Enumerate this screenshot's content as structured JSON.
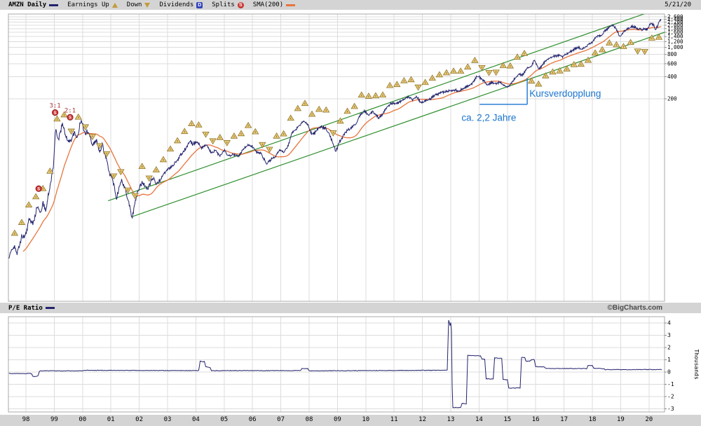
{
  "header": {
    "symbol_label": "AMZN Daily",
    "legend": {
      "earnings_up": "Earnings Up",
      "down": "Down",
      "dividends": "Dividends",
      "dividend_badge": "D",
      "splits": "Splits",
      "split_badge": "S",
      "sma": "SMA(200)"
    },
    "date": "5/21/20"
  },
  "pe_header": {
    "label": "P/E Ratio",
    "credit": "©BigCharts.com"
  },
  "colors": {
    "price": "#23236e",
    "sma": "#e8743c",
    "grid": "#dcdcdc",
    "border": "#aaaaaa",
    "channel": "#2f8f2f",
    "marker_fill": "#e9cb7c",
    "marker_stroke": "#8f7427",
    "split_fill": "#cc3333",
    "split_label": "#aa3333",
    "annotation": "#1a75d2",
    "axis_text": "#000000"
  },
  "chart_data": [
    {
      "type": "line",
      "title": "AMZN Daily",
      "yscale": "log",
      "x_domain": [
        1997.4,
        2020.55
      ],
      "x_ticks": {
        "start_year": 1998,
        "labels": [
          "98",
          "99",
          "00",
          "01",
          "02",
          "03",
          "04",
          "05",
          "06",
          "07",
          "08",
          "09",
          "10",
          "11",
          "12",
          "13",
          "14",
          "15",
          "16",
          "17",
          "18",
          "19",
          "20"
        ]
      },
      "y_gridlines": [
        200,
        400,
        600,
        800,
        1000,
        1200,
        1400,
        1600,
        1800,
        2000,
        2200,
        2400,
        2600
      ],
      "y_tick_labels": [
        {
          "value": 2600,
          "label": "2,600"
        },
        {
          "value": 2400,
          "label": "2,400"
        },
        {
          "value": 2200,
          "label": "2,200"
        },
        {
          "value": 2000,
          "label": "2,000"
        },
        {
          "value": 1800,
          "label": "1,800"
        },
        {
          "value": 1600,
          "label": "1,600"
        },
        {
          "value": 1400,
          "label": "1,400"
        },
        {
          "value": 1200,
          "label": "1,200"
        },
        {
          "value": 1000,
          "label": "1,000"
        },
        {
          "value": 800,
          "label": "800"
        },
        {
          "value": 600,
          "label": "600"
        },
        {
          "value": 400,
          "label": "400"
        },
        {
          "value": 200,
          "label": "200"
        }
      ],
      "sma_window_years": 0.8,
      "price_keypoints": [
        [
          1997.4,
          1.35
        ],
        [
          1997.55,
          2.0
        ],
        [
          1997.7,
          1.6
        ],
        [
          1997.85,
          2.6
        ],
        [
          1998.0,
          2.9
        ],
        [
          1998.1,
          4.5
        ],
        [
          1998.25,
          4.0
        ],
        [
          1998.4,
          7.0
        ],
        [
          1998.5,
          5.5
        ],
        [
          1998.6,
          7.5
        ],
        [
          1998.7,
          6.3
        ],
        [
          1998.82,
          11
        ],
        [
          1998.9,
          17
        ],
        [
          1998.97,
          24
        ],
        [
          1999.05,
          80
        ],
        [
          1999.15,
          55
        ],
        [
          1999.3,
          95
        ],
        [
          1999.4,
          60
        ],
        [
          1999.55,
          52
        ],
        [
          1999.7,
          68
        ],
        [
          1999.8,
          58
        ],
        [
          1999.95,
          103
        ],
        [
          2000.1,
          65
        ],
        [
          2000.2,
          75
        ],
        [
          2000.35,
          48
        ],
        [
          2000.5,
          55
        ],
        [
          2000.6,
          36
        ],
        [
          2000.7,
          48
        ],
        [
          2000.85,
          28
        ],
        [
          2000.95,
          20
        ],
        [
          2001.1,
          14
        ],
        [
          2001.2,
          9
        ],
        [
          2001.35,
          16
        ],
        [
          2001.5,
          12
        ],
        [
          2001.6,
          9
        ],
        [
          2001.75,
          4.8
        ],
        [
          2001.9,
          9.5
        ],
        [
          2002.0,
          12
        ],
        [
          2002.1,
          15
        ],
        [
          2002.3,
          12
        ],
        [
          2002.5,
          17
        ],
        [
          2002.6,
          13.5
        ],
        [
          2002.75,
          16
        ],
        [
          2002.9,
          20
        ],
        [
          2003.1,
          23
        ],
        [
          2003.3,
          28
        ],
        [
          2003.5,
          36
        ],
        [
          2003.65,
          42
        ],
        [
          2003.8,
          54
        ],
        [
          2003.9,
          48
        ],
        [
          2004.05,
          52
        ],
        [
          2004.2,
          43
        ],
        [
          2004.4,
          47
        ],
        [
          2004.55,
          36
        ],
        [
          2004.7,
          40
        ],
        [
          2004.85,
          33
        ],
        [
          2005.0,
          40
        ],
        [
          2005.15,
          33
        ],
        [
          2005.3,
          35
        ],
        [
          2005.5,
          33
        ],
        [
          2005.7,
          42
        ],
        [
          2005.85,
          48
        ],
        [
          2006.0,
          45
        ],
        [
          2006.15,
          37
        ],
        [
          2006.3,
          36
        ],
        [
          2006.5,
          26
        ],
        [
          2006.65,
          30
        ],
        [
          2006.8,
          32
        ],
        [
          2006.95,
          40
        ],
        [
          2007.1,
          37
        ],
        [
          2007.25,
          45
        ],
        [
          2007.4,
          70
        ],
        [
          2007.55,
          78
        ],
        [
          2007.7,
          90
        ],
        [
          2007.8,
          99
        ],
        [
          2007.95,
          90
        ],
        [
          2008.05,
          72
        ],
        [
          2008.15,
          65
        ],
        [
          2008.3,
          78
        ],
        [
          2008.45,
          83
        ],
        [
          2008.6,
          78
        ],
        [
          2008.75,
          62
        ],
        [
          2008.9,
          42
        ],
        [
          2008.95,
          38
        ],
        [
          2009.05,
          52
        ],
        [
          2009.2,
          62
        ],
        [
          2009.35,
          75
        ],
        [
          2009.5,
          82
        ],
        [
          2009.65,
          90
        ],
        [
          2009.8,
          120
        ],
        [
          2009.95,
          135
        ],
        [
          2010.1,
          120
        ],
        [
          2010.25,
          135
        ],
        [
          2010.45,
          110
        ],
        [
          2010.6,
          125
        ],
        [
          2010.75,
          155
        ],
        [
          2010.9,
          175
        ],
        [
          2011.05,
          170
        ],
        [
          2011.2,
          180
        ],
        [
          2011.35,
          195
        ],
        [
          2011.5,
          215
        ],
        [
          2011.65,
          195
        ],
        [
          2011.8,
          215
        ],
        [
          2011.95,
          175
        ],
        [
          2012.1,
          185
        ],
        [
          2012.25,
          195
        ],
        [
          2012.4,
          220
        ],
        [
          2012.55,
          230
        ],
        [
          2012.7,
          245
        ],
        [
          2012.85,
          250
        ],
        [
          2013.0,
          260
        ],
        [
          2013.15,
          265
        ],
        [
          2013.3,
          255
        ],
        [
          2013.45,
          280
        ],
        [
          2013.6,
          300
        ],
        [
          2013.75,
          320
        ],
        [
          2013.9,
          395
        ],
        [
          2014.0,
          400
        ],
        [
          2014.15,
          355
        ],
        [
          2014.3,
          310
        ],
        [
          2014.45,
          330
        ],
        [
          2014.6,
          320
        ],
        [
          2014.75,
          340
        ],
        [
          2014.9,
          300
        ],
        [
          2015.0,
          290
        ],
        [
          2015.1,
          310
        ],
        [
          2015.25,
          375
        ],
        [
          2015.4,
          425
        ],
        [
          2015.55,
          430
        ],
        [
          2015.7,
          520
        ],
        [
          2015.85,
          560
        ],
        [
          2015.95,
          670
        ],
        [
          2016.1,
          510
        ],
        [
          2016.2,
          550
        ],
        [
          2016.35,
          660
        ],
        [
          2016.5,
          715
        ],
        [
          2016.65,
          760
        ],
        [
          2016.8,
          780
        ],
        [
          2016.95,
          750
        ],
        [
          2017.1,
          820
        ],
        [
          2017.25,
          890
        ],
        [
          2017.4,
          960
        ],
        [
          2017.5,
          1000
        ],
        [
          2017.6,
          950
        ],
        [
          2017.75,
          990
        ],
        [
          2017.9,
          1120
        ],
        [
          2018.0,
          1190
        ],
        [
          2018.1,
          1350
        ],
        [
          2018.2,
          1450
        ],
        [
          2018.3,
          1400
        ],
        [
          2018.45,
          1700
        ],
        [
          2018.6,
          1850
        ],
        [
          2018.7,
          2020
        ],
        [
          2018.8,
          1900
        ],
        [
          2018.9,
          1600
        ],
        [
          2018.98,
          1370
        ],
        [
          2019.1,
          1650
        ],
        [
          2019.25,
          1780
        ],
        [
          2019.4,
          1920
        ],
        [
          2019.5,
          1900
        ],
        [
          2019.6,
          1800
        ],
        [
          2019.75,
          1750
        ],
        [
          2019.85,
          1780
        ],
        [
          2019.95,
          1790
        ],
        [
          2020.1,
          2150
        ],
        [
          2020.17,
          2000
        ],
        [
          2020.23,
          1680
        ],
        [
          2020.3,
          1950
        ],
        [
          2020.38,
          2380
        ],
        [
          2020.42,
          2446
        ]
      ],
      "trend_channel": {
        "lower": [
          [
            2001.75,
            5.0
          ],
          [
            2020.55,
            1600
          ]
        ],
        "upper": [
          [
            2000.9,
            8.2
          ],
          [
            2019.75,
            2780
          ]
        ]
      },
      "earnings": {
        "quarter_start": 1997.6,
        "quarter_count": 92,
        "step": 0.25,
        "down_quarters": [
          1999.6,
          2000.1,
          2000.35,
          2000.6,
          2000.85,
          2001.1,
          2001.35,
          2001.6,
          2001.85,
          2002.35,
          2004.35,
          2004.6,
          2005.1,
          2006.35,
          2006.6,
          2008.85,
          2011.85,
          2014.1,
          2014.35,
          2014.6,
          2019.6,
          2019.85
        ]
      },
      "splits": [
        {
          "year": 1998.45,
          "price": 12,
          "label": ""
        },
        {
          "year": 1999.03,
          "price": 130,
          "label": "3:1"
        },
        {
          "year": 1999.56,
          "price": 112,
          "label": "2:1"
        }
      ],
      "annotations": [
        {
          "text": "Kursverdopplung",
          "year": 2015.78,
          "price": 213
        },
        {
          "text": "ca. 2,2 Jahre",
          "year": 2013.38,
          "price": 100
        }
      ],
      "measure_bracket": {
        "x1_year": 2014.02,
        "x2_year": 2015.7,
        "price_low": 168,
        "price_high": 382
      }
    },
    {
      "type": "line",
      "title": "P/E Ratio",
      "ylabel": "Thousands",
      "y_ticks": [
        4,
        3,
        2,
        1,
        0,
        -1,
        -2,
        -3
      ],
      "ylim": [
        -3.3,
        4.5
      ],
      "points": [
        [
          1997.4,
          -0.12
        ],
        [
          1998.2,
          -0.12
        ],
        [
          1998.25,
          -0.38
        ],
        [
          1998.42,
          -0.33
        ],
        [
          1998.48,
          0.1
        ],
        [
          2000.0,
          0.1
        ],
        [
          2000.05,
          0.14
        ],
        [
          2004.1,
          0.12
        ],
        [
          2004.15,
          0.88
        ],
        [
          2004.3,
          0.85
        ],
        [
          2004.35,
          0.45
        ],
        [
          2004.5,
          0.35
        ],
        [
          2004.55,
          0.12
        ],
        [
          2007.7,
          0.12
        ],
        [
          2007.75,
          0.3
        ],
        [
          2007.95,
          0.28
        ],
        [
          2008.0,
          0.1
        ],
        [
          2012.88,
          0.15
        ],
        [
          2012.92,
          4.3
        ],
        [
          2012.98,
          3.75
        ],
        [
          2013.02,
          4.35
        ],
        [
          2013.06,
          -2.9
        ],
        [
          2013.35,
          -2.88
        ],
        [
          2013.4,
          -2.55
        ],
        [
          2013.55,
          -2.6
        ],
        [
          2013.6,
          1.35
        ],
        [
          2014.05,
          1.32
        ],
        [
          2014.1,
          1.05
        ],
        [
          2014.2,
          1.05
        ],
        [
          2014.25,
          -0.55
        ],
        [
          2014.5,
          -0.58
        ],
        [
          2014.55,
          1.15
        ],
        [
          2014.8,
          1.12
        ],
        [
          2014.85,
          -0.62
        ],
        [
          2015.0,
          -0.62
        ],
        [
          2015.05,
          -1.32
        ],
        [
          2015.45,
          -1.3
        ],
        [
          2015.5,
          1.2
        ],
        [
          2015.62,
          1.18
        ],
        [
          2015.65,
          0.88
        ],
        [
          2015.8,
          0.9
        ],
        [
          2015.85,
          1.02
        ],
        [
          2015.95,
          1.0
        ],
        [
          2016.0,
          0.45
        ],
        [
          2016.3,
          0.42
        ],
        [
          2016.35,
          0.3
        ],
        [
          2017.8,
          0.28
        ],
        [
          2017.85,
          0.55
        ],
        [
          2018.0,
          0.52
        ],
        [
          2018.05,
          0.3
        ],
        [
          2018.4,
          0.28
        ],
        [
          2018.45,
          0.2
        ],
        [
          2020.45,
          0.2
        ]
      ]
    }
  ]
}
